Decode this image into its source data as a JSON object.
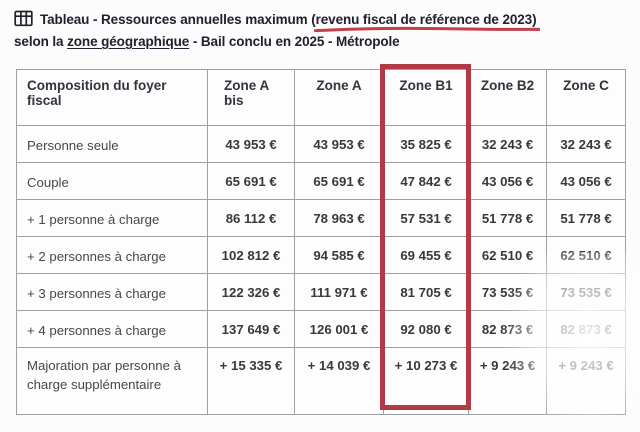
{
  "title": {
    "prefix": "Tableau - Ressources annuelles maximum (",
    "annotated": "revenu fiscal de référence de 2023)",
    "line2_pre": "selon la ",
    "link": "zone géographique",
    "line2_post": " - Bail conclu en 2025 - Métropole"
  },
  "colors": {
    "highlight_box": "#b23a46",
    "marker_underline": "#c04149",
    "table_border": "#9f9f9f"
  },
  "table": {
    "highlighted_column": "Zone B1",
    "columns": [
      "Composition du foyer fiscal",
      "Zone A bis",
      "Zone A",
      "Zone B1",
      "Zone B2",
      "Zone C"
    ],
    "rows": [
      {
        "label": "Personne seule",
        "values": [
          "43 953 €",
          "43 953 €",
          "35 825 €",
          "32 243 €",
          "32 243 €"
        ]
      },
      {
        "label": "Couple",
        "values": [
          "65 691 €",
          "65 691 €",
          "47 842 €",
          "43 056 €",
          "43 056 €"
        ]
      },
      {
        "label": "+ 1 personne à charge",
        "values": [
          "86 112 €",
          "78 963 €",
          "57 531 €",
          "51 778 €",
          "51 778 €"
        ]
      },
      {
        "label": "+ 2 personnes à charge",
        "values": [
          "102 812 €",
          "94 585 €",
          "69 455 €",
          "62 510 €",
          "62 510 €"
        ]
      },
      {
        "label": "+ 3 personnes à charge",
        "values": [
          "122 326 €",
          "111 971 €",
          "81 705 €",
          "73 535 €",
          "73 535 €"
        ]
      },
      {
        "label": "+ 4 personnes à charge",
        "values": [
          "137 649 €",
          "126 001 €",
          "92 080 €",
          "82 873 €",
          "82 873 €"
        ]
      },
      {
        "label": "Majoration par personne à charge supplémentaire",
        "values": [
          "+ 15 335 €",
          "+ 14 039 €",
          "+ 10 273 €",
          "+ 9 243 €",
          "+ 9 243 €"
        ]
      }
    ]
  }
}
